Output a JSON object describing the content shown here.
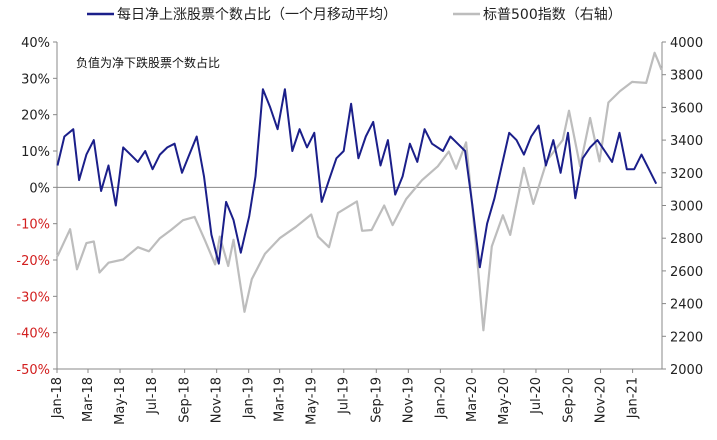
{
  "chart_data": {
    "type": "line",
    "title": "",
    "note": "负值为净下跌股票个数占比",
    "xlabel": "",
    "ylabel_left": "",
    "ylabel_right": "",
    "x_tick_labels": [
      "Jan-18",
      "Mar-18",
      "May-18",
      "Jul-18",
      "Sep-18",
      "Nov-18",
      "Jan-19",
      "Mar-19",
      "May-19",
      "Jul-19",
      "Sep-19",
      "Nov-19",
      "Jan-20",
      "Mar-20",
      "May-20",
      "Jul-20",
      "Sep-20",
      "Nov-20",
      "Jan-21"
    ],
    "y_left": {
      "min": -0.5,
      "max": 0.4,
      "ticks": [
        "-50%",
        "-40%",
        "-30%",
        "-20%",
        "-10%",
        "0%",
        "10%",
        "20%",
        "30%",
        "40%"
      ]
    },
    "y_right": {
      "min": 2000,
      "max": 4000,
      "ticks": [
        "2000",
        "2200",
        "2400",
        "2600",
        "2800",
        "3000",
        "3200",
        "3400",
        "3600",
        "3800",
        "4000"
      ]
    },
    "legend_position": "top",
    "series": [
      {
        "name": "每日净上涨股票个数占比（一个月移动平均）",
        "axis": "left",
        "color": "#1b1f8a",
        "points": [
          [
            "2018-01-02",
            0.06
          ],
          [
            "2018-01-15",
            0.14
          ],
          [
            "2018-02-01",
            0.16
          ],
          [
            "2018-02-12",
            0.02
          ],
          [
            "2018-02-26",
            0.09
          ],
          [
            "2018-03-12",
            0.13
          ],
          [
            "2018-03-26",
            -0.01
          ],
          [
            "2018-04-09",
            0.06
          ],
          [
            "2018-04-23",
            -0.05
          ],
          [
            "2018-05-07",
            0.11
          ],
          [
            "2018-05-21",
            0.09
          ],
          [
            "2018-06-04",
            0.07
          ],
          [
            "2018-06-18",
            0.1
          ],
          [
            "2018-07-02",
            0.05
          ],
          [
            "2018-07-16",
            0.09
          ],
          [
            "2018-07-30",
            0.11
          ],
          [
            "2018-08-13",
            0.12
          ],
          [
            "2018-08-27",
            0.04
          ],
          [
            "2018-09-10",
            0.09
          ],
          [
            "2018-09-24",
            0.14
          ],
          [
            "2018-10-08",
            0.03
          ],
          [
            "2018-10-22",
            -0.13
          ],
          [
            "2018-11-05",
            -0.21
          ],
          [
            "2018-11-19",
            -0.04
          ],
          [
            "2018-12-03",
            -0.09
          ],
          [
            "2018-12-17",
            -0.18
          ],
          [
            "2019-01-02",
            -0.08
          ],
          [
            "2019-01-14",
            0.03
          ],
          [
            "2019-01-28",
            0.27
          ],
          [
            "2019-02-11",
            0.22
          ],
          [
            "2019-02-25",
            0.16
          ],
          [
            "2019-03-11",
            0.27
          ],
          [
            "2019-03-25",
            0.1
          ],
          [
            "2019-04-08",
            0.16
          ],
          [
            "2019-04-22",
            0.11
          ],
          [
            "2019-05-06",
            0.15
          ],
          [
            "2019-05-20",
            -0.04
          ],
          [
            "2019-06-03",
            0.02
          ],
          [
            "2019-06-17",
            0.08
          ],
          [
            "2019-07-01",
            0.1
          ],
          [
            "2019-07-15",
            0.23
          ],
          [
            "2019-07-29",
            0.08
          ],
          [
            "2019-08-12",
            0.14
          ],
          [
            "2019-08-26",
            0.18
          ],
          [
            "2019-09-09",
            0.06
          ],
          [
            "2019-09-23",
            0.13
          ],
          [
            "2019-10-07",
            -0.02
          ],
          [
            "2019-10-21",
            0.03
          ],
          [
            "2019-11-04",
            0.12
          ],
          [
            "2019-11-18",
            0.07
          ],
          [
            "2019-12-02",
            0.16
          ],
          [
            "2019-12-16",
            0.12
          ],
          [
            "2020-01-06",
            0.1
          ],
          [
            "2020-01-20",
            0.14
          ],
          [
            "2020-02-03",
            0.12
          ],
          [
            "2020-02-17",
            0.1
          ],
          [
            "2020-03-02",
            -0.05
          ],
          [
            "2020-03-16",
            -0.22
          ],
          [
            "2020-03-30",
            -0.1
          ],
          [
            "2020-04-13",
            -0.03
          ],
          [
            "2020-04-27",
            0.06
          ],
          [
            "2020-05-11",
            0.15
          ],
          [
            "2020-05-25",
            0.13
          ],
          [
            "2020-06-08",
            0.09
          ],
          [
            "2020-06-22",
            0.14
          ],
          [
            "2020-07-06",
            0.17
          ],
          [
            "2020-07-20",
            0.06
          ],
          [
            "2020-08-03",
            0.13
          ],
          [
            "2020-08-17",
            0.04
          ],
          [
            "2020-08-31",
            0.15
          ],
          [
            "2020-09-14",
            -0.03
          ],
          [
            "2020-09-28",
            0.08
          ],
          [
            "2020-10-12",
            0.11
          ],
          [
            "2020-10-26",
            0.13
          ],
          [
            "2020-11-09",
            0.1
          ],
          [
            "2020-11-23",
            0.07
          ],
          [
            "2020-12-07",
            0.15
          ],
          [
            "2020-12-21",
            0.05
          ],
          [
            "2021-01-04",
            0.05
          ],
          [
            "2021-01-18",
            0.09
          ],
          [
            "2021-02-01",
            0.05
          ],
          [
            "2021-02-15",
            0.01
          ]
        ]
      },
      {
        "name": "标普500指数（右轴）",
        "axis": "right",
        "color": "#bdbdbd",
        "points": [
          [
            "2018-01-02",
            2690
          ],
          [
            "2018-01-26",
            2855
          ],
          [
            "2018-02-08",
            2610
          ],
          [
            "2018-02-26",
            2770
          ],
          [
            "2018-03-12",
            2780
          ],
          [
            "2018-03-23",
            2590
          ],
          [
            "2018-04-09",
            2650
          ],
          [
            "2018-05-07",
            2670
          ],
          [
            "2018-06-04",
            2745
          ],
          [
            "2018-06-25",
            2720
          ],
          [
            "2018-07-16",
            2800
          ],
          [
            "2018-08-06",
            2850
          ],
          [
            "2018-08-29",
            2910
          ],
          [
            "2018-09-20",
            2930
          ],
          [
            "2018-10-10",
            2785
          ],
          [
            "2018-10-29",
            2640
          ],
          [
            "2018-11-07",
            2810
          ],
          [
            "2018-11-23",
            2630
          ],
          [
            "2018-12-03",
            2790
          ],
          [
            "2018-12-24",
            2350
          ],
          [
            "2019-01-07",
            2550
          ],
          [
            "2019-02-01",
            2705
          ],
          [
            "2019-03-01",
            2800
          ],
          [
            "2019-04-01",
            2870
          ],
          [
            "2019-04-30",
            2945
          ],
          [
            "2019-05-13",
            2810
          ],
          [
            "2019-06-03",
            2745
          ],
          [
            "2019-06-20",
            2955
          ],
          [
            "2019-07-26",
            3025
          ],
          [
            "2019-08-05",
            2845
          ],
          [
            "2019-08-23",
            2850
          ],
          [
            "2019-09-16",
            3000
          ],
          [
            "2019-10-02",
            2880
          ],
          [
            "2019-10-28",
            3040
          ],
          [
            "2019-11-27",
            3155
          ],
          [
            "2019-12-27",
            3240
          ],
          [
            "2020-01-17",
            3330
          ],
          [
            "2020-01-31",
            3225
          ],
          [
            "2020-02-19",
            3386
          ],
          [
            "2020-03-09",
            2750
          ],
          [
            "2020-03-23",
            2237
          ],
          [
            "2020-04-08",
            2750
          ],
          [
            "2020-04-29",
            2940
          ],
          [
            "2020-05-13",
            2820
          ],
          [
            "2020-06-08",
            3230
          ],
          [
            "2020-06-26",
            3010
          ],
          [
            "2020-07-22",
            3275
          ],
          [
            "2020-08-21",
            3400
          ],
          [
            "2020-09-02",
            3580
          ],
          [
            "2020-09-23",
            3240
          ],
          [
            "2020-10-12",
            3535
          ],
          [
            "2020-10-30",
            3270
          ],
          [
            "2020-11-16",
            3630
          ],
          [
            "2020-12-08",
            3700
          ],
          [
            "2020-12-31",
            3756
          ],
          [
            "2021-01-27",
            3750
          ],
          [
            "2021-02-12",
            3934
          ],
          [
            "2021-02-19",
            3880
          ],
          [
            "2021-02-25",
            3830
          ]
        ]
      }
    ]
  }
}
